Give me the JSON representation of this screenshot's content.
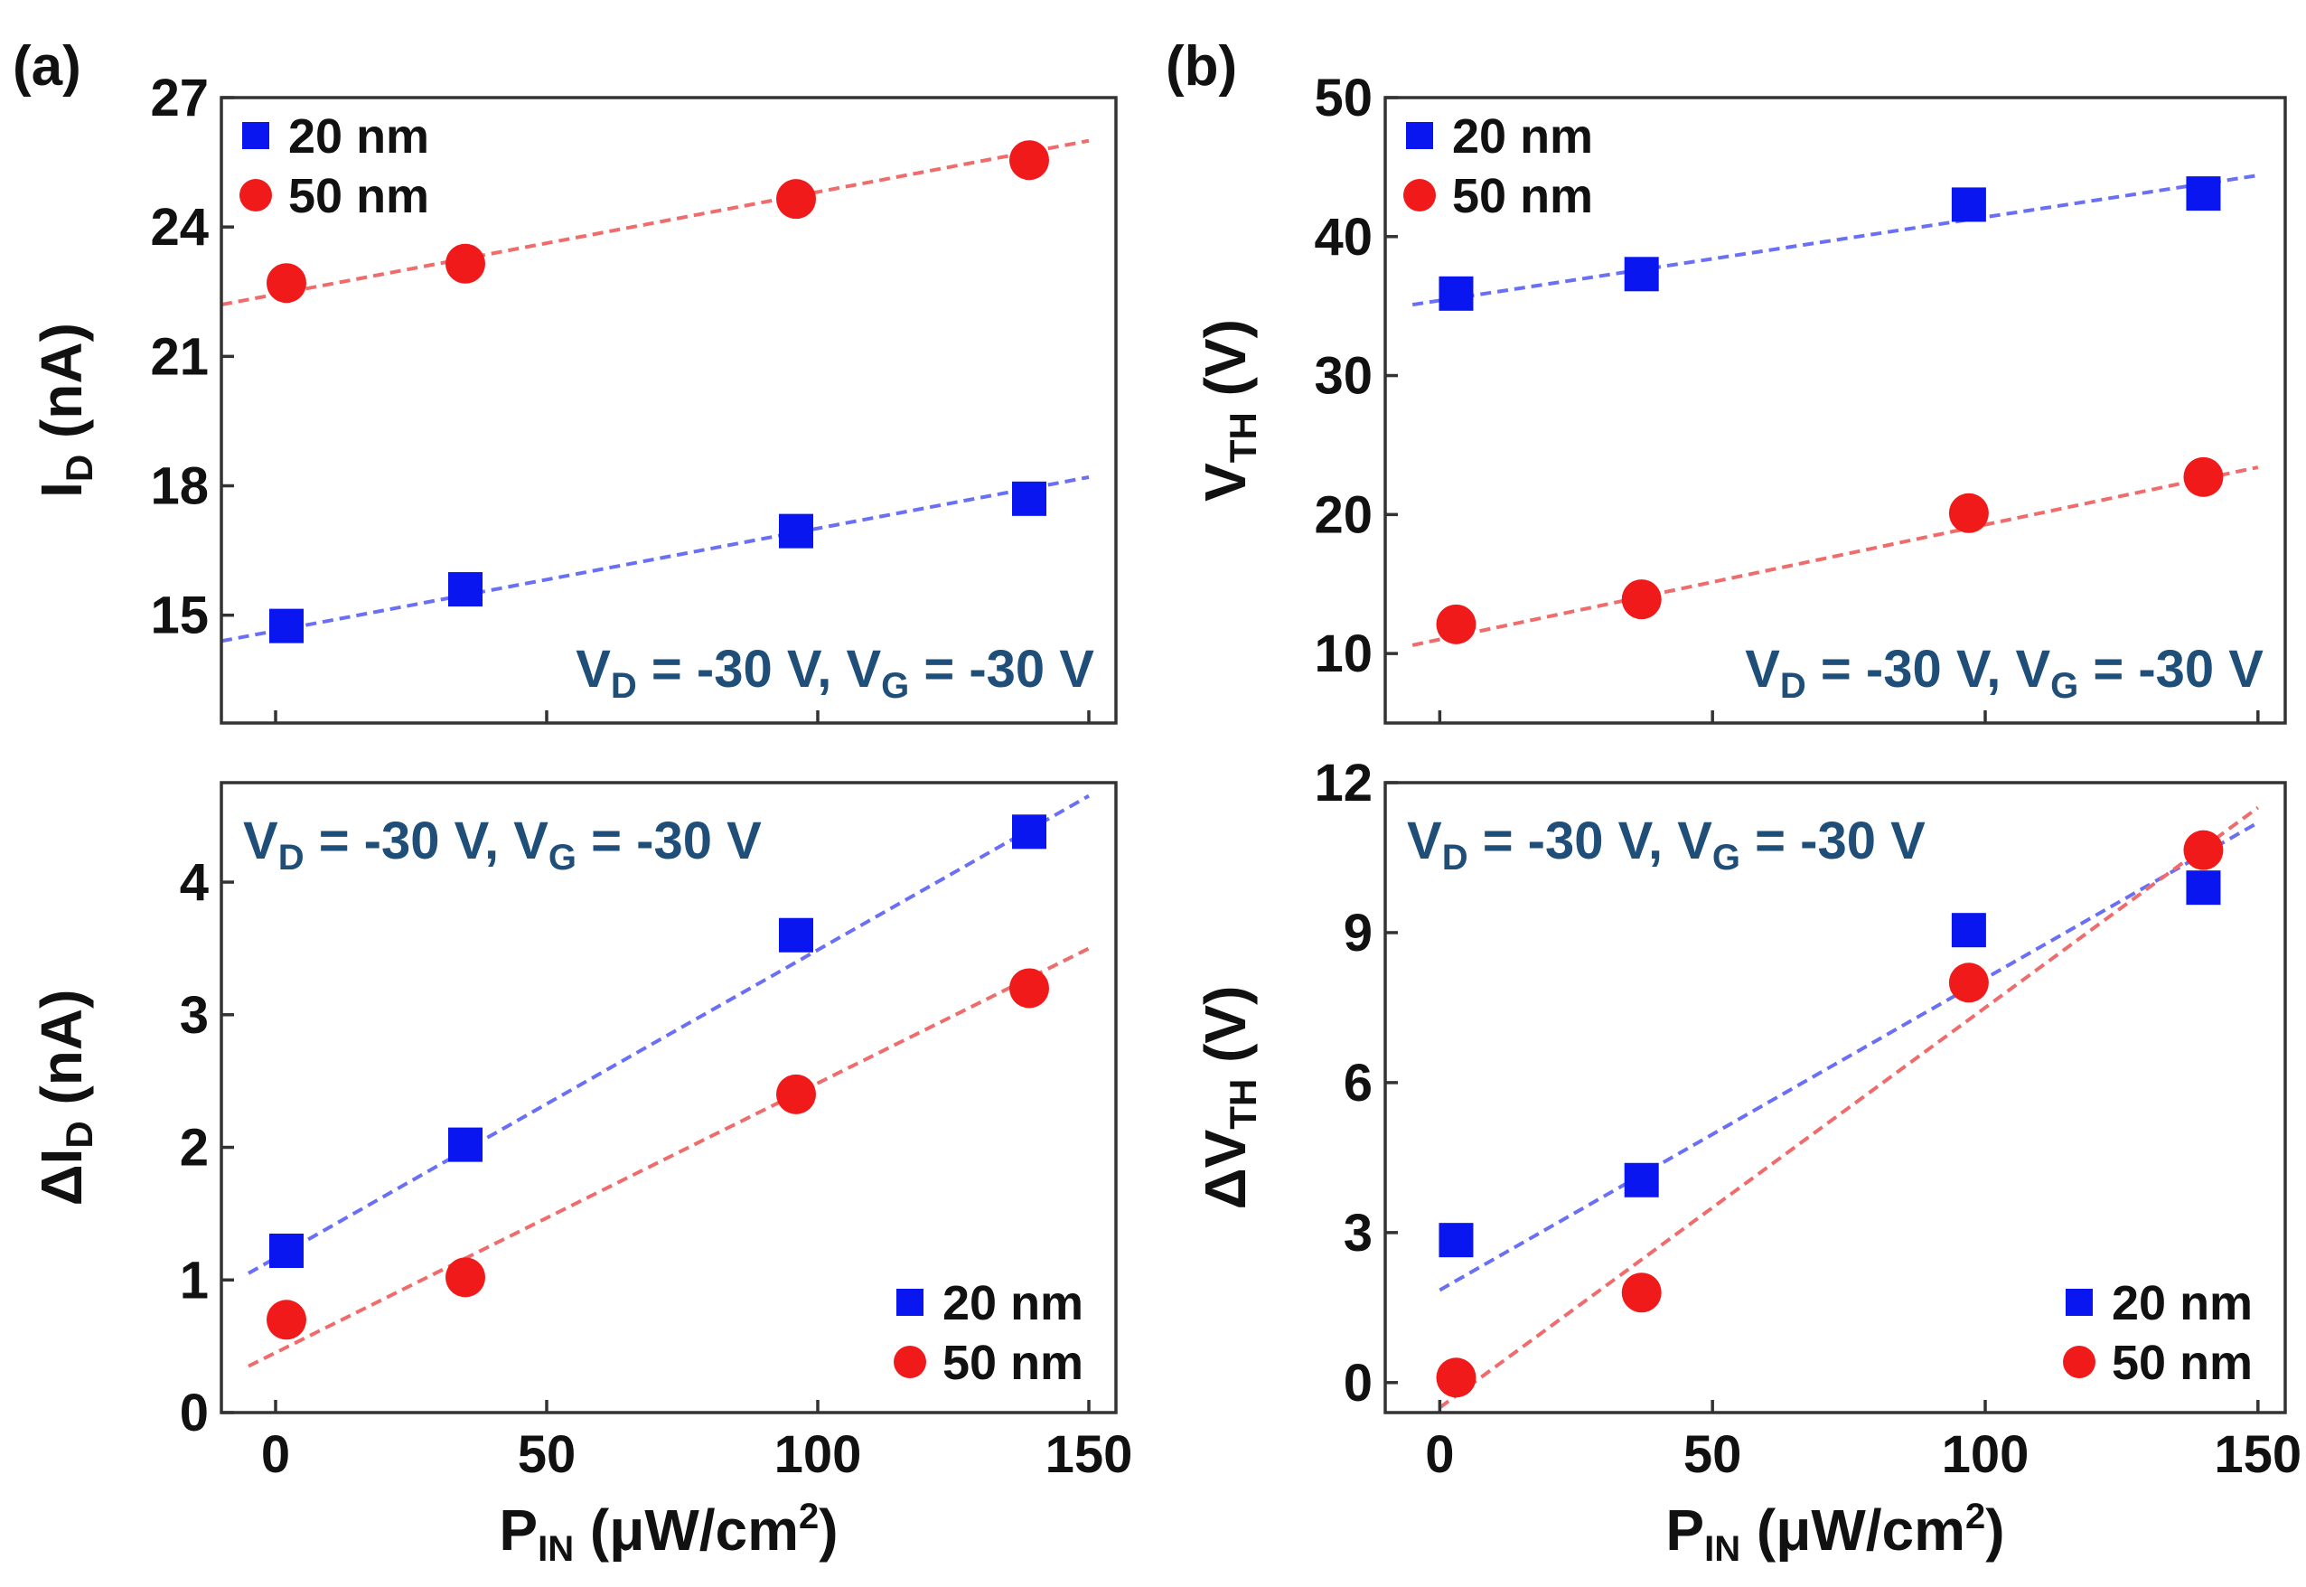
{
  "figure": {
    "panel_labels": [
      "(a)",
      "(b)"
    ],
    "colors": {
      "series_20nm": "#0a16f0",
      "series_50nm": "#f01a1a",
      "fit_20nm": "#6a70f5",
      "fit_50nm": "#f06c6c",
      "condition_text": "#1f4e79",
      "axis": "#333333"
    },
    "condition_parts": {
      "vd": "V",
      "vd_sub": "D",
      "mid": " = -30 V, V",
      "vg_sub": "G",
      "end": " = -30 V"
    },
    "x_title": {
      "main": "P",
      "sub": "IN",
      "unit": " (μW/cm",
      "sup": "2",
      "close": ")"
    },
    "legend": [
      "20 nm",
      "50 nm"
    ]
  },
  "chart_data": [
    {
      "id": "a-top",
      "type": "scatter",
      "panel_label": "(a)",
      "ylabel": {
        "main": "I",
        "sub": "D",
        "unit": " (nA)"
      },
      "xlim": [
        -10,
        155
      ],
      "ylim": [
        12.5,
        27
      ],
      "yticks": [
        15,
        18,
        21,
        24,
        27
      ],
      "xticks": [
        0,
        50,
        100,
        150
      ],
      "show_xtick_labels": false,
      "legend_position": "top-left",
      "condition_position": "bottom-right",
      "series": [
        {
          "name": "20 nm",
          "marker": "square",
          "x": [
            2,
            35,
            96,
            139
          ],
          "y": [
            14.75,
            15.6,
            16.95,
            17.7
          ],
          "fit": [
            [
              -10,
              14.4
            ],
            [
              150,
              18.2
            ]
          ]
        },
        {
          "name": "50 nm",
          "marker": "circle",
          "x": [
            2,
            35,
            96,
            139
          ],
          "y": [
            22.7,
            23.15,
            24.65,
            25.55
          ],
          "fit": [
            [
              -10,
              22.2
            ],
            [
              150,
              26.0
            ]
          ]
        }
      ]
    },
    {
      "id": "a-bottom",
      "type": "scatter",
      "ylabel": {
        "main": "ΔI",
        "sub": "D",
        "unit": " (nA)"
      },
      "xlim": [
        -10,
        155
      ],
      "ylim": [
        0,
        4.75
      ],
      "yticks": [
        0,
        1,
        2,
        3,
        4
      ],
      "xticks": [
        0,
        50,
        100,
        150
      ],
      "show_xtick_labels": true,
      "legend_position": "bottom-right",
      "condition_position": "top-left",
      "series": [
        {
          "name": "20 nm",
          "marker": "square",
          "x": [
            2,
            35,
            96,
            139
          ],
          "y": [
            1.22,
            2.02,
            3.6,
            4.38
          ],
          "fit": [
            [
              -5,
              1.05
            ],
            [
              150,
              4.65
            ]
          ]
        },
        {
          "name": "50 nm",
          "marker": "circle",
          "x": [
            2,
            35,
            96,
            139
          ],
          "y": [
            0.7,
            1.02,
            2.4,
            3.2
          ],
          "fit": [
            [
              -5,
              0.35
            ],
            [
              150,
              3.5
            ]
          ]
        }
      ]
    },
    {
      "id": "b-top",
      "type": "scatter",
      "panel_label": "(b)",
      "ylabel": {
        "main": "V",
        "sub": "TH",
        "unit": " (V)"
      },
      "xlim": [
        -10,
        155
      ],
      "ylim": [
        5,
        50
      ],
      "yticks": [
        10,
        20,
        30,
        40,
        50
      ],
      "xticks": [
        0,
        50,
        100,
        150
      ],
      "show_xtick_labels": false,
      "legend_position": "top-left",
      "condition_position": "bottom-right",
      "series": [
        {
          "name": "20 nm",
          "marker": "square",
          "x": [
            3,
            37,
            97,
            140
          ],
          "y": [
            35.9,
            37.3,
            42.3,
            43.1
          ],
          "fit": [
            [
              -5,
              35.1
            ],
            [
              150,
              44.4
            ]
          ]
        },
        {
          "name": "50 nm",
          "marker": "circle",
          "x": [
            3,
            37,
            97,
            140
          ],
          "y": [
            12.1,
            13.9,
            20.1,
            22.7
          ],
          "fit": [
            [
              -5,
              10.6
            ],
            [
              150,
              23.4
            ]
          ]
        }
      ]
    },
    {
      "id": "b-bottom",
      "type": "scatter",
      "ylabel": {
        "main": "ΔV",
        "sub": "TH",
        "unit": " (V)"
      },
      "xlim": [
        -10,
        155
      ],
      "ylim": [
        -0.6,
        12
      ],
      "yticks": [
        0,
        3,
        6,
        9,
        12
      ],
      "xticks": [
        0,
        50,
        100,
        150
      ],
      "show_xtick_labels": true,
      "legend_position": "bottom-right",
      "condition_position": "top-left",
      "series": [
        {
          "name": "20 nm",
          "marker": "square",
          "x": [
            3,
            37,
            97,
            140
          ],
          "y": [
            2.85,
            4.05,
            9.05,
            9.9
          ],
          "fit": [
            [
              0,
              1.85
            ],
            [
              150,
              11.2
            ]
          ]
        },
        {
          "name": "50 nm",
          "marker": "circle",
          "x": [
            3,
            37,
            97,
            140
          ],
          "y": [
            0.1,
            1.8,
            8.0,
            10.65
          ],
          "fit": [
            [
              0,
              -0.5
            ],
            [
              150,
              11.5
            ]
          ]
        }
      ]
    }
  ]
}
